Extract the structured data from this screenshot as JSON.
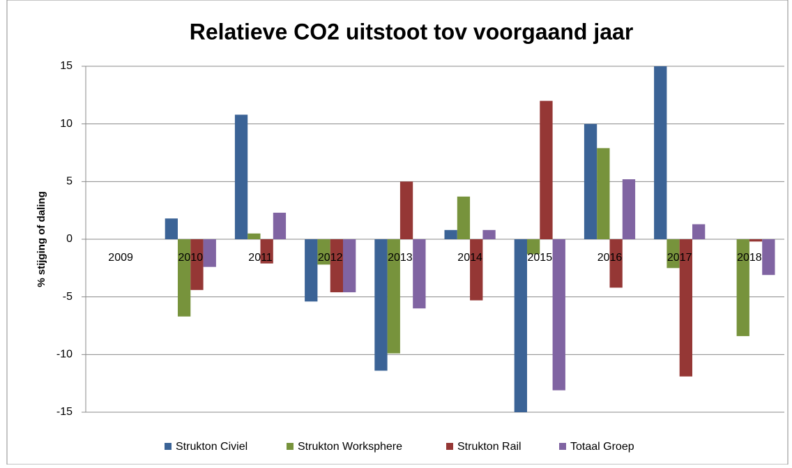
{
  "chart_data": {
    "type": "bar",
    "title": "Relatieve CO2 uitstoot tov voorgaand jaar",
    "y_label": "% stijging of daling",
    "categories": [
      "2009",
      "2010",
      "2011",
      "2012",
      "2013",
      "2014",
      "2015",
      "2016",
      "2017",
      "2018"
    ],
    "series": [
      {
        "name": "Strukton Civiel",
        "color": "#3b6396",
        "values": [
          null,
          1.8,
          10.8,
          -5.4,
          -11.4,
          0.8,
          -15,
          10.0,
          15,
          null
        ]
      },
      {
        "name": "Strukton Worksphere",
        "color": "#77933c",
        "values": [
          null,
          -6.7,
          0.5,
          -2.2,
          -9.9,
          3.7,
          -1.3,
          7.9,
          -2.5,
          -8.4
        ]
      },
      {
        "name": "Strukton Rail",
        "color": "#953735",
        "values": [
          null,
          -4.4,
          -2.1,
          -4.6,
          5.0,
          -5.3,
          12.0,
          -4.2,
          -11.9,
          -0.2
        ]
      },
      {
        "name": "Totaal Groep",
        "color": "#8064a2",
        "values": [
          null,
          -2.4,
          2.3,
          -4.6,
          -6.0,
          0.8,
          -13.1,
          5.2,
          1.3,
          -3.1
        ]
      }
    ],
    "ylim": [
      -15,
      15
    ],
    "yticks": [
      -15,
      -10,
      -5,
      0,
      5,
      10,
      15
    ],
    "grid": true,
    "legend": "bottom"
  }
}
